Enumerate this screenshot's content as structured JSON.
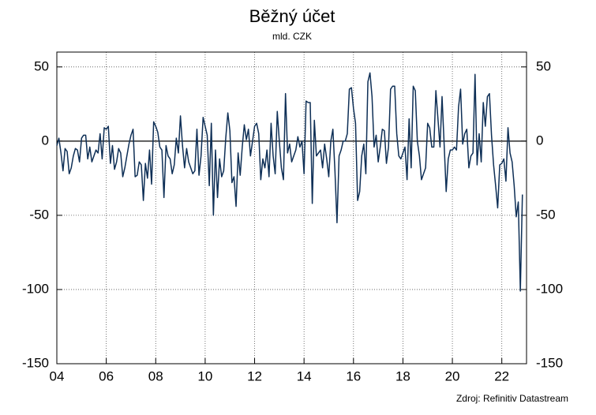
{
  "chart_data": {
    "type": "line",
    "title": "Běžný účet",
    "subtitle": "mld. CZK",
    "source": "Zdroj: Refinitiv Datastream",
    "xlim": [
      2004,
      2023
    ],
    "ylim": [
      -150,
      60
    ],
    "xticks": [
      {
        "value": 2004,
        "label": "04"
      },
      {
        "value": 2006,
        "label": "06"
      },
      {
        "value": 2008,
        "label": "08"
      },
      {
        "value": 2010,
        "label": "10"
      },
      {
        "value": 2012,
        "label": "12"
      },
      {
        "value": 2014,
        "label": "14"
      },
      {
        "value": 2016,
        "label": "16"
      },
      {
        "value": 2018,
        "label": "18"
      },
      {
        "value": 2020,
        "label": "20"
      },
      {
        "value": 2022,
        "label": "22"
      }
    ],
    "yticks": [
      -150,
      -100,
      -50,
      0,
      50
    ],
    "grid": true,
    "series": [
      {
        "color": "#0e2f56",
        "x": [
          2004,
          2004.083,
          2004.167,
          2004.25,
          2004.333,
          2004.417,
          2004.5,
          2004.583,
          2004.667,
          2004.75,
          2004.833,
          2004.917,
          2005,
          2005.083,
          2005.167,
          2005.25,
          2005.333,
          2005.417,
          2005.5,
          2005.583,
          2005.667,
          2005.75,
          2005.833,
          2005.917,
          2006,
          2006.083,
          2006.167,
          2006.25,
          2006.333,
          2006.417,
          2006.5,
          2006.583,
          2006.667,
          2006.75,
          2006.833,
          2006.917,
          2007,
          2007.083,
          2007.167,
          2007.25,
          2007.333,
          2007.417,
          2007.5,
          2007.583,
          2007.667,
          2007.75,
          2007.833,
          2007.917,
          2008,
          2008.083,
          2008.167,
          2008.25,
          2008.333,
          2008.417,
          2008.5,
          2008.583,
          2008.667,
          2008.75,
          2008.833,
          2008.917,
          2009,
          2009.083,
          2009.167,
          2009.25,
          2009.333,
          2009.417,
          2009.5,
          2009.583,
          2009.667,
          2009.75,
          2009.833,
          2009.917,
          2010,
          2010.083,
          2010.167,
          2010.25,
          2010.333,
          2010.417,
          2010.5,
          2010.583,
          2010.667,
          2010.75,
          2010.833,
          2010.917,
          2011,
          2011.083,
          2011.167,
          2011.25,
          2011.333,
          2011.417,
          2011.5,
          2011.583,
          2011.667,
          2011.75,
          2011.833,
          2011.917,
          2012,
          2012.083,
          2012.167,
          2012.25,
          2012.333,
          2012.417,
          2012.5,
          2012.583,
          2012.667,
          2012.75,
          2012.833,
          2012.917,
          2013,
          2013.083,
          2013.167,
          2013.25,
          2013.333,
          2013.417,
          2013.5,
          2013.583,
          2013.667,
          2013.75,
          2013.833,
          2013.917,
          2014,
          2014.083,
          2014.167,
          2014.25,
          2014.333,
          2014.417,
          2014.5,
          2014.583,
          2014.667,
          2014.75,
          2014.833,
          2014.917,
          2015,
          2015.083,
          2015.167,
          2015.25,
          2015.333,
          2015.417,
          2015.5,
          2015.583,
          2015.667,
          2015.75,
          2015.833,
          2015.917,
          2016,
          2016.083,
          2016.167,
          2016.25,
          2016.333,
          2016.417,
          2016.5,
          2016.583,
          2016.667,
          2016.75,
          2016.833,
          2016.917,
          2017,
          2017.083,
          2017.167,
          2017.25,
          2017.333,
          2017.417,
          2017.5,
          2017.583,
          2017.667,
          2017.75,
          2017.833,
          2017.917,
          2018,
          2018.083,
          2018.167,
          2018.25,
          2018.333,
          2018.417,
          2018.5,
          2018.583,
          2018.667,
          2018.75,
          2018.833,
          2018.917,
          2019,
          2019.083,
          2019.167,
          2019.25,
          2019.333,
          2019.417,
          2019.5,
          2019.583,
          2019.667,
          2019.75,
          2019.833,
          2019.917,
          2020,
          2020.083,
          2020.167,
          2020.25,
          2020.333,
          2020.417,
          2020.5,
          2020.583,
          2020.667,
          2020.75,
          2020.833,
          2020.917,
          2021,
          2021.083,
          2021.167,
          2021.25,
          2021.333,
          2021.417,
          2021.5,
          2021.583,
          2021.667,
          2021.75,
          2021.833,
          2021.917,
          2022,
          2022.083,
          2022.167,
          2022.25,
          2022.333,
          2022.417,
          2022.5,
          2022.583,
          2022.667,
          2022.75,
          2022.833
        ],
        "values": [
          -3,
          2,
          -8,
          -20,
          -5,
          -7,
          -22,
          -18,
          -10,
          -5,
          -6,
          -14,
          2,
          4,
          4,
          -12,
          -4,
          -14,
          -10,
          -6,
          -8,
          5,
          -12,
          9,
          8,
          10,
          -15,
          -3,
          -19,
          -14,
          -5,
          -8,
          -24,
          -18,
          -10,
          -2,
          4,
          8,
          -24,
          -23,
          -14,
          -16,
          -40,
          -15,
          -25,
          -6,
          -29,
          13,
          10,
          6,
          -4,
          -6,
          -38,
          -3,
          -10,
          -12,
          -22,
          -16,
          2,
          -8,
          17,
          -3,
          -18,
          -5,
          -14,
          -18,
          -22,
          -20,
          8,
          -23,
          -10,
          16,
          10,
          4,
          -30,
          12,
          -50,
          -6,
          -38,
          -12,
          -24,
          -20,
          2,
          19,
          7,
          -28,
          -24,
          -44,
          -8,
          -23,
          -4,
          11,
          1,
          8,
          -10,
          0,
          10,
          12,
          5,
          -26,
          -12,
          -18,
          -6,
          -24,
          12,
          -10,
          -22,
          20,
          0,
          -18,
          -26,
          32,
          -8,
          -2,
          -14,
          -10,
          -6,
          3,
          -4,
          0,
          -22,
          27,
          26,
          26,
          -42,
          14,
          -10,
          -8,
          -6,
          -18,
          -2,
          -12,
          -24,
          0,
          8,
          -20,
          -55,
          -10,
          -6,
          0,
          0,
          5,
          35,
          36,
          22,
          12,
          -40,
          -34,
          -10,
          -2,
          -22,
          40,
          46,
          30,
          -4,
          4,
          -14,
          -4,
          8,
          7,
          -15,
          -4,
          35,
          37,
          37,
          5,
          -10,
          -12,
          -8,
          -4,
          -26,
          15,
          -18,
          37,
          34,
          0,
          -10,
          -26,
          -22,
          -18,
          12,
          9,
          -4,
          -4,
          34,
          15,
          -4,
          30,
          -2,
          -34,
          -12,
          -6,
          -6,
          -4,
          -6,
          23,
          35,
          -2,
          5,
          8,
          -18,
          -10,
          -8,
          45,
          -16,
          5,
          -14,
          26,
          10,
          30,
          32,
          4,
          -16,
          -30,
          -45,
          -16,
          -15,
          -12,
          -27,
          9,
          -8,
          -14,
          -30,
          -51,
          -41,
          -101,
          -36
        ]
      }
    ]
  }
}
